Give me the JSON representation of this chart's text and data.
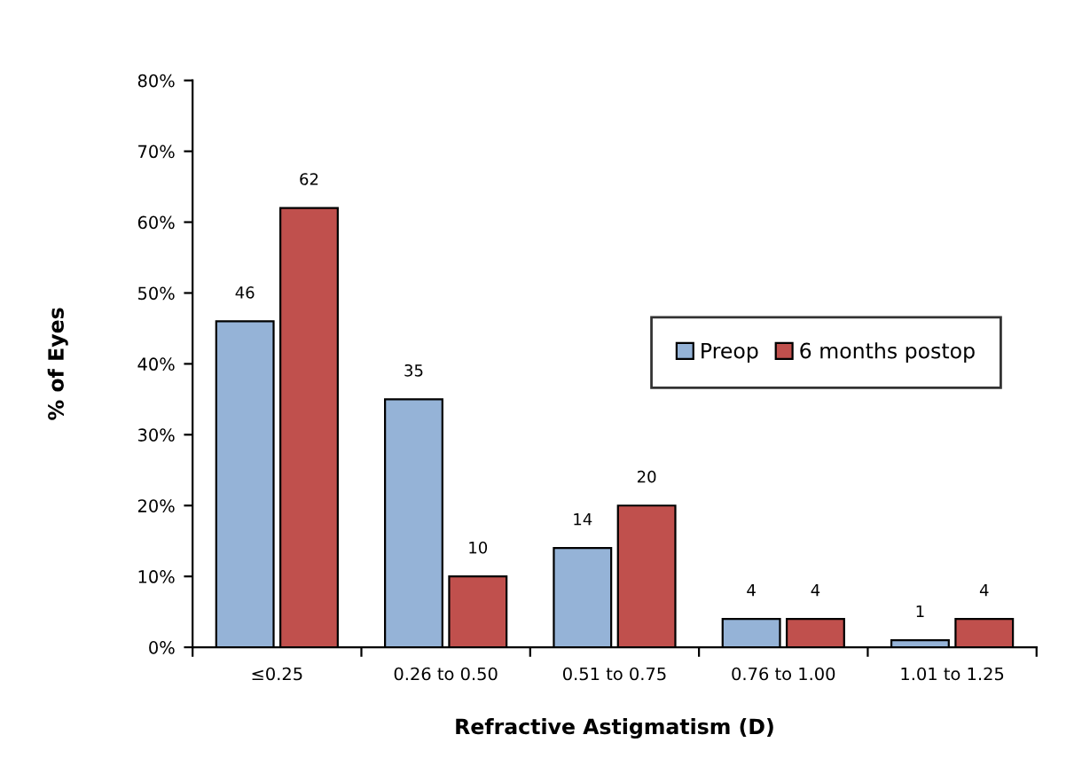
{
  "chart_data": {
    "type": "bar",
    "xlabel": "Refractive Astigmatism (D)",
    "ylabel": "% of Eyes",
    "categories": [
      "≤0.25",
      "0.26 to 0.50",
      "0.51 to 0.75",
      "0.76 to 1.00",
      "1.01 to 1.25"
    ],
    "series": [
      {
        "name": "Preop",
        "color": "#95b3d7",
        "values": [
          46,
          35,
          14,
          4,
          1
        ]
      },
      {
        "name": "6 months postop",
        "color": "#c0504d",
        "values": [
          62,
          10,
          20,
          4,
          4
        ]
      }
    ],
    "ylim": [
      0,
      80
    ],
    "yticks": [
      {
        "value": 0,
        "label": "0%"
      },
      {
        "value": 10,
        "label": "10%"
      },
      {
        "value": 20,
        "label": "20%"
      },
      {
        "value": 30,
        "label": "30%"
      },
      {
        "value": 40,
        "label": "40%"
      },
      {
        "value": 50,
        "label": "50%"
      },
      {
        "value": 60,
        "label": "60%"
      },
      {
        "value": 70,
        "label": "70%"
      },
      {
        "value": 80,
        "label": "80%"
      }
    ],
    "data_labels": true,
    "legend": "center right",
    "grid": false
  }
}
